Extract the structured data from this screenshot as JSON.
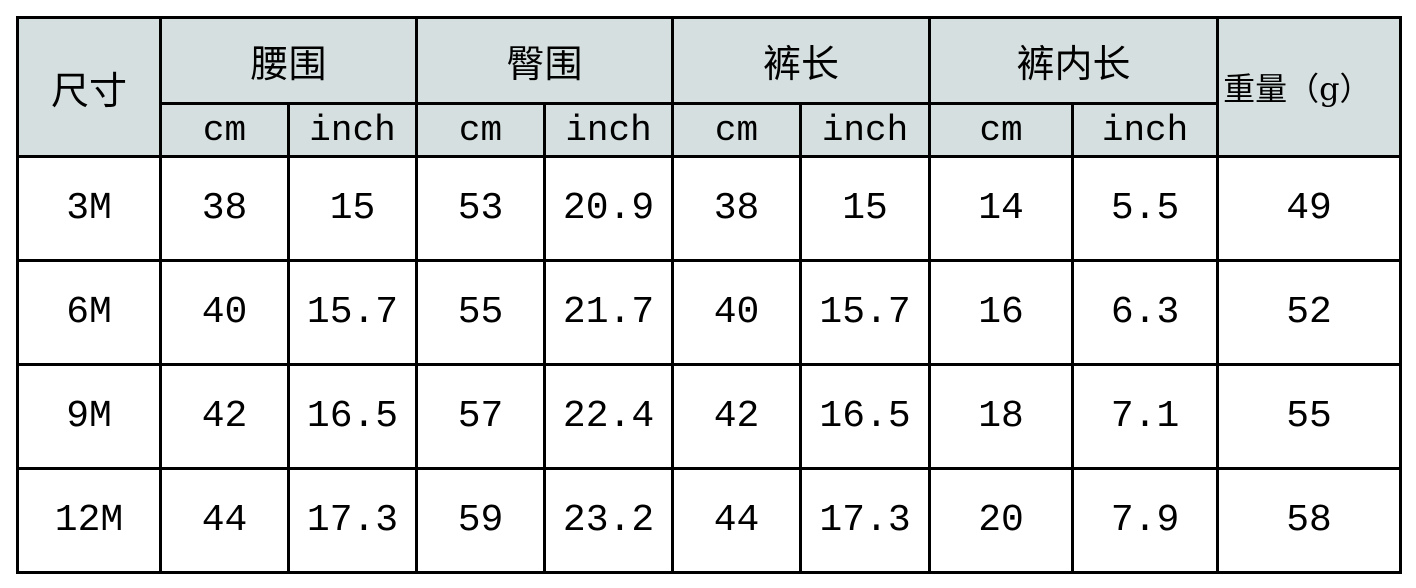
{
  "table": {
    "size_header": "尺寸",
    "groups": [
      "腰围",
      "臀围",
      "裤长",
      "裤内长"
    ],
    "units": [
      "cm",
      "inch"
    ],
    "weight_header": "重量（g）",
    "header_bg": "#d6dfdf",
    "rows": [
      [
        "3M",
        "38",
        "15",
        "53",
        "20.9",
        "38",
        "15",
        "14",
        "5.5",
        "49"
      ],
      [
        "6M",
        "40",
        "15.7",
        "55",
        "21.7",
        "40",
        "15.7",
        "16",
        "6.3",
        "52"
      ],
      [
        "9M",
        "42",
        "16.5",
        "57",
        "22.4",
        "42",
        "16.5",
        "18",
        "7.1",
        "55"
      ],
      [
        "12M",
        "44",
        "17.3",
        "59",
        "23.2",
        "44",
        "17.3",
        "20",
        "7.9",
        "58"
      ]
    ]
  }
}
